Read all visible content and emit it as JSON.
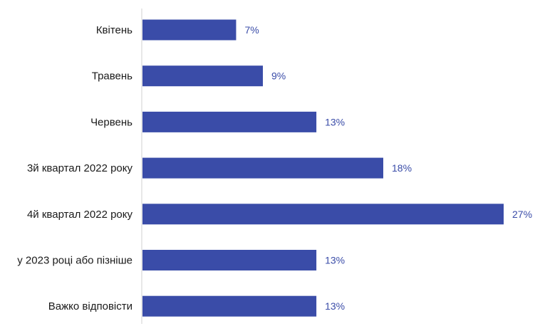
{
  "chart_data": {
    "type": "bar",
    "orientation": "horizontal",
    "categories": [
      "Квітень",
      "Травень",
      "Червень",
      "3й квартал 2022 року",
      "4й квартал 2022 року",
      "у 2023 році або пізніше",
      "Важко відповісти"
    ],
    "values": [
      7,
      9,
      13,
      18,
      27,
      13,
      13
    ],
    "value_labels": [
      "7%",
      "9%",
      "13%",
      "18%",
      "27%",
      "13%",
      "13%"
    ],
    "unit": "%",
    "title": "",
    "xlabel": "",
    "ylabel": "",
    "xlim": [
      0,
      27
    ],
    "grid": false,
    "legend": "none",
    "bar_color": "#3a4ca8",
    "label_color": "#3a4ca8"
  }
}
